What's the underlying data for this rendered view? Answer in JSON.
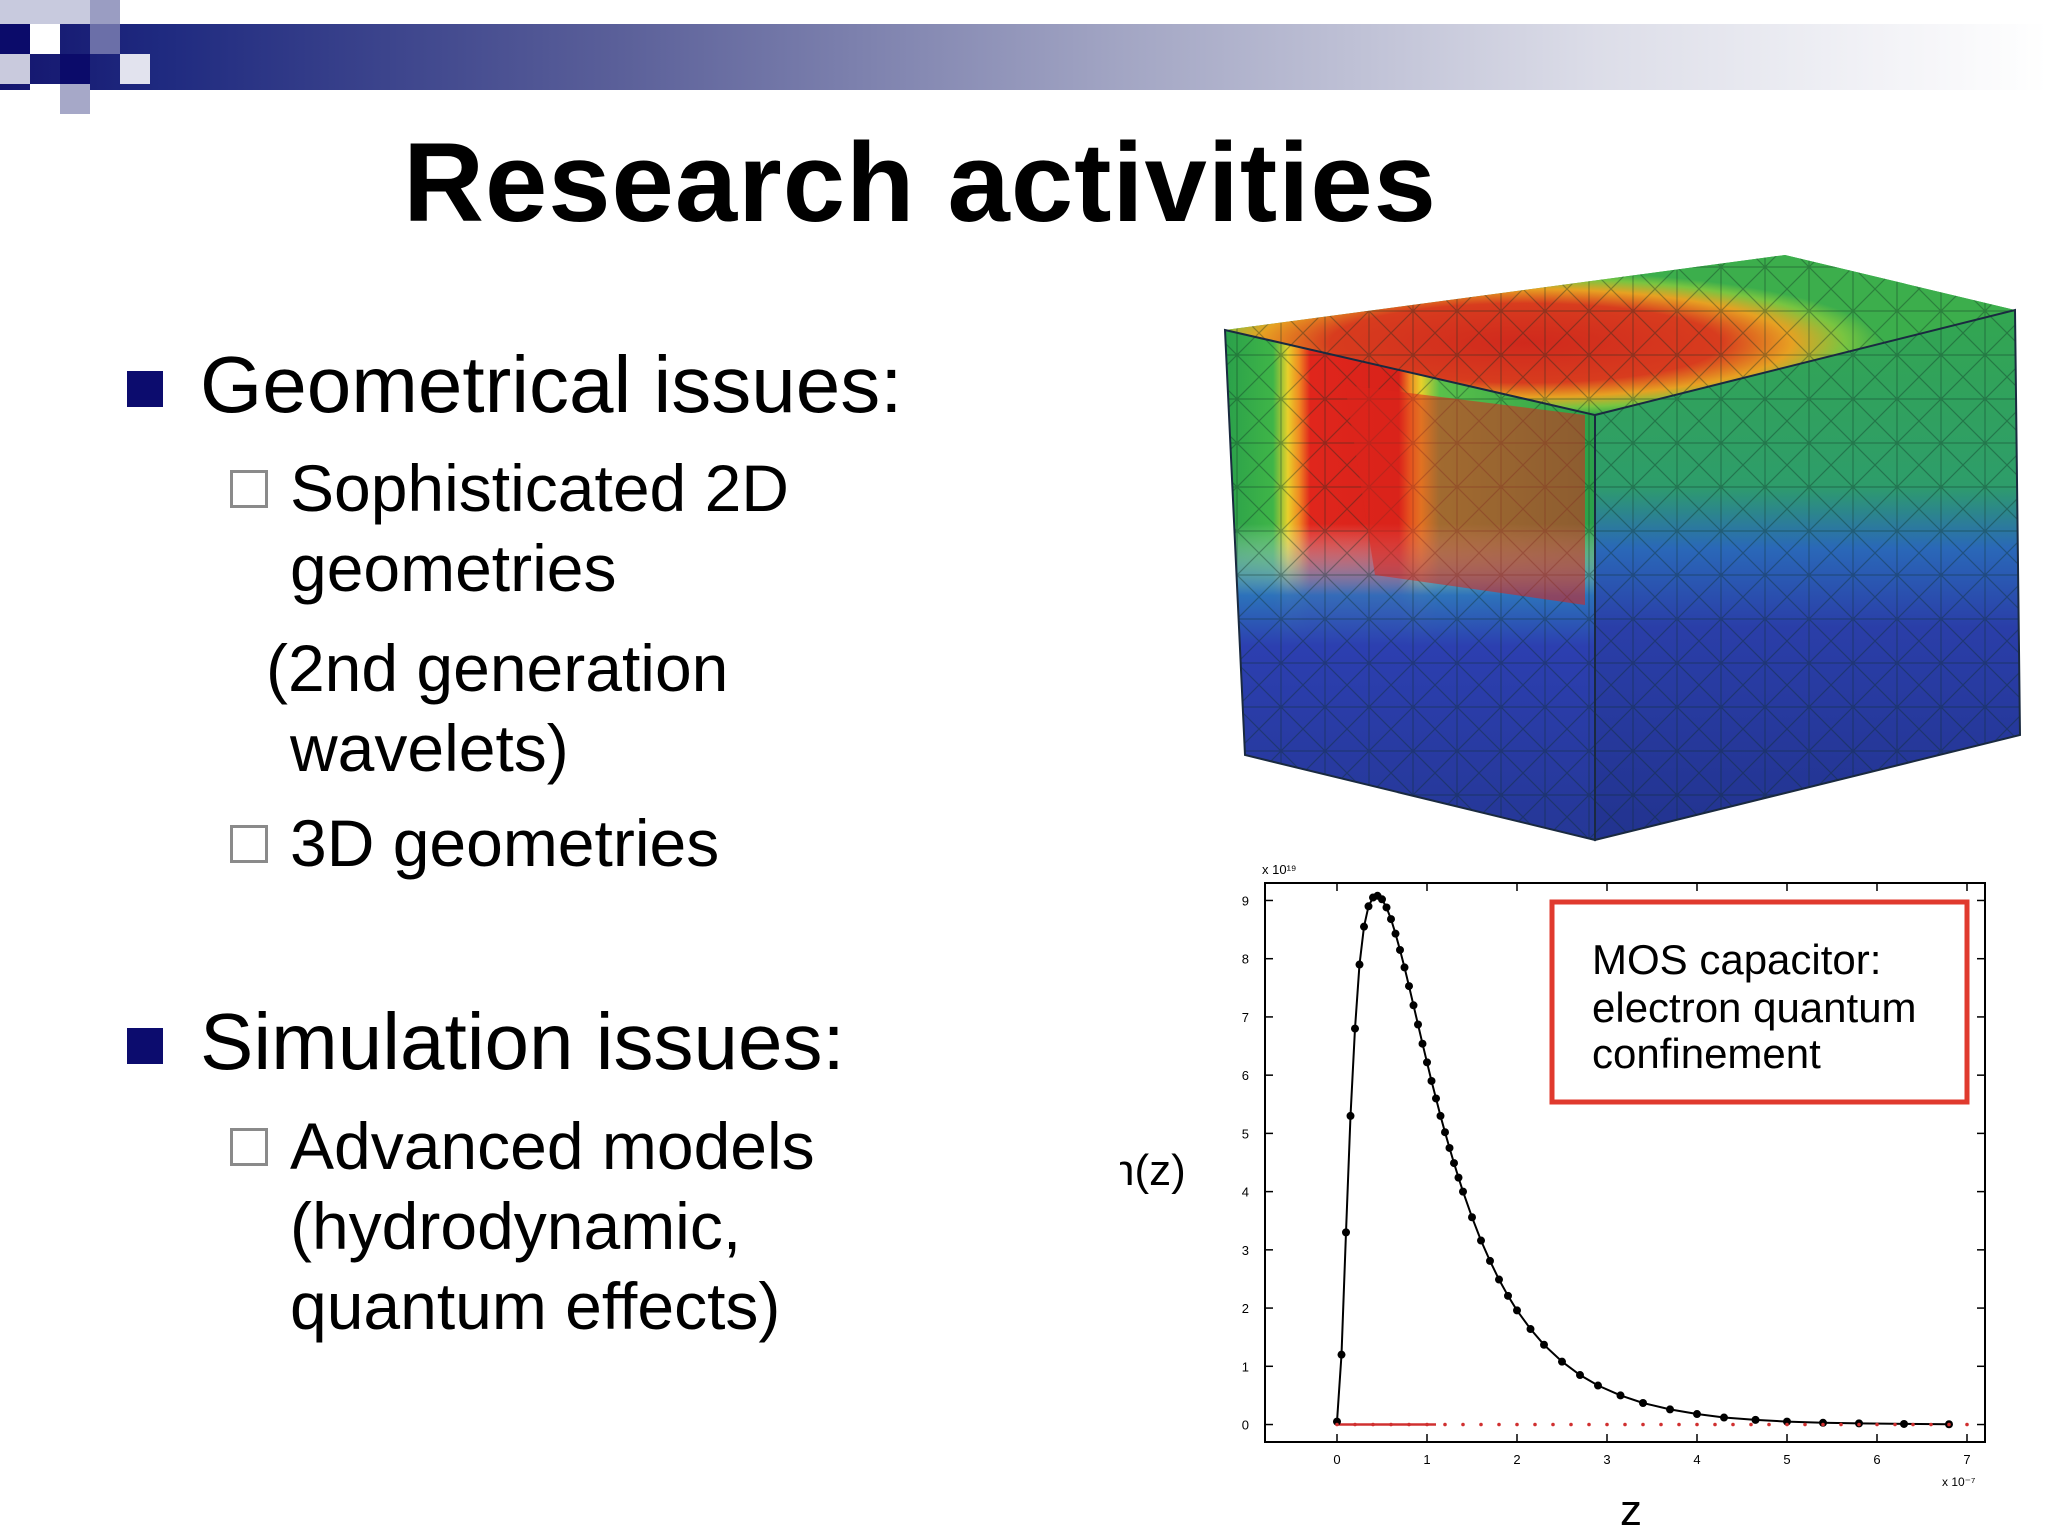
{
  "slide": {
    "title": "Research activities",
    "bullets": [
      {
        "label": "Geometrical issues:",
        "subitems": [
          {
            "lines": [
              "Sophisticated 2D",
              "geometries"
            ]
          },
          {
            "lines": [
              "(2nd generation",
              "wavelets)"
            ],
            "plain": true
          },
          {
            "lines": [
              "3D geometries"
            ]
          }
        ]
      },
      {
        "label": "Simulation issues:",
        "subitems": [
          {
            "lines": [
              "Advanced models",
              "(hydrodynamic,",
              "quantum effects)"
            ]
          }
        ]
      }
    ]
  },
  "mesh_figure": {
    "colors": {
      "green": "#2fa84a",
      "red": "#e0261c",
      "yellow": "#f2c12e",
      "blue": "#2c3fb0",
      "dark_blue": "#253796"
    }
  },
  "chart_data": {
    "type": "scatter",
    "title": "",
    "xlabel": "z",
    "ylabel": "n(z)",
    "x_scale_label": "x 10⁻⁷",
    "y_scale_label": "x 10¹⁹",
    "xlim": [
      -0.8,
      7.2
    ],
    "ylim": [
      -0.3,
      9.3
    ],
    "xticks": [
      0,
      1,
      2,
      3,
      4,
      5,
      6,
      7
    ],
    "yticks": [
      0,
      1,
      2,
      3,
      4,
      5,
      6,
      7,
      8,
      9
    ],
    "annotation": [
      "MOS capacitor:",
      "electron quantum",
      "confinement"
    ],
    "annotation_color": "#e03a2e",
    "series": [
      {
        "name": "n(z) points",
        "marker": "dot",
        "line": true,
        "x": [
          0,
          0.05,
          0.1,
          0.15,
          0.2,
          0.25,
          0.3,
          0.35,
          0.4,
          0.45,
          0.5,
          0.55,
          0.6,
          0.65,
          0.7,
          0.75,
          0.8,
          0.85,
          0.9,
          0.95,
          1.0,
          1.05,
          1.1,
          1.15,
          1.2,
          1.25,
          1.3,
          1.35,
          1.4,
          1.5,
          1.6,
          1.7,
          1.8,
          1.9,
          2.0,
          2.15,
          2.3,
          2.5,
          2.7,
          2.9,
          3.15,
          3.4,
          3.7,
          4.0,
          4.3,
          4.65,
          5.0,
          5.4,
          5.8,
          6.3,
          6.8
        ],
        "y": [
          0.05,
          1.2,
          3.3,
          5.3,
          6.8,
          7.9,
          8.55,
          8.9,
          9.05,
          9.08,
          9.02,
          8.88,
          8.68,
          8.43,
          8.15,
          7.85,
          7.53,
          7.2,
          6.87,
          6.54,
          6.22,
          5.9,
          5.6,
          5.3,
          5.02,
          4.75,
          4.49,
          4.24,
          4.0,
          3.56,
          3.16,
          2.81,
          2.49,
          2.21,
          1.96,
          1.64,
          1.37,
          1.08,
          0.85,
          0.67,
          0.5,
          0.37,
          0.26,
          0.18,
          0.12,
          0.08,
          0.05,
          0.03,
          0.02,
          0.01,
          0.005
        ]
      },
      {
        "name": "baseline",
        "marker": "tiny",
        "color": "#d03030",
        "x": [
          0,
          0.2,
          0.4,
          0.6,
          0.8,
          1.0,
          1.2,
          1.4,
          1.6,
          1.8,
          2.0,
          2.2,
          2.4,
          2.6,
          2.8,
          3.0,
          3.2,
          3.4,
          3.6,
          3.8,
          4.0,
          4.2,
          4.4,
          4.6,
          4.8,
          5.0,
          5.2,
          5.4,
          5.6,
          5.8,
          6.0,
          6.2,
          6.4,
          6.6,
          6.8,
          7.0
        ],
        "y": [
          0,
          0,
          0,
          0,
          0,
          0,
          0,
          0,
          0,
          0,
          0,
          0,
          0,
          0,
          0,
          0,
          0,
          0,
          0,
          0,
          0,
          0,
          0,
          0,
          0,
          0,
          0,
          0,
          0,
          0,
          0,
          0,
          0,
          0,
          0,
          0
        ]
      }
    ]
  }
}
